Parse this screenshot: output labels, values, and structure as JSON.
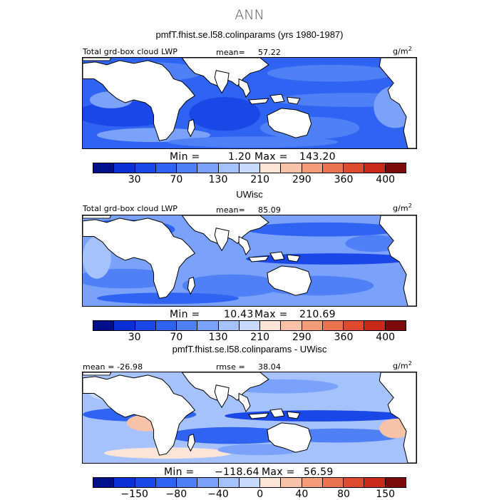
{
  "main_title": "ANN",
  "colors": {
    "palette_top": [
      "#00108a",
      "#0a2fd6",
      "#1a48e8",
      "#2f63f2",
      "#4f80f6",
      "#7aa2fb",
      "#a5c2fd",
      "#c8d9fe",
      "#fce4d6",
      "#f7c2a8",
      "#f29c7a",
      "#ea7350",
      "#dd4a2d",
      "#c9291a",
      "#7d0a0a"
    ],
    "palette_diff": [
      "#00108a",
      "#0a2fd6",
      "#1a48e8",
      "#2f63f2",
      "#4f80f6",
      "#7aa2fb",
      "#a5c2fd",
      "#c8d9fe",
      "#fce4d6",
      "#f7c2a8",
      "#f29c7a",
      "#ea7350",
      "#dd4a2d",
      "#c9291a",
      "#7d0a0a"
    ],
    "land": "#ffffff",
    "coast": "#000000"
  },
  "chart_data": [
    {
      "type": "heatmap",
      "title": "pmfT.fhist.se.l58.colinparams (yrs 1980-1987)",
      "left_label": "Total grd-box cloud LWP",
      "stat_label": "mean=",
      "stat_value": "57.22",
      "units_base": "g/m",
      "units_exp": "2",
      "min_label": "Min =",
      "min_value": "1.20",
      "max_label": "Max =",
      "max_value": "143.20",
      "colorbar_ticks": [
        "30",
        "70",
        "130",
        "210",
        "290",
        "360",
        "400"
      ]
    },
    {
      "type": "heatmap",
      "title": "UWisc",
      "left_label": "Total grd-box cloud LWP",
      "stat_label": "mean=",
      "stat_value": "85.09",
      "units_base": "g/m",
      "units_exp": "2",
      "min_label": "Min =",
      "min_value": "10.43",
      "max_label": "Max =",
      "max_value": "210.69",
      "colorbar_ticks": [
        "30",
        "70",
        "130",
        "210",
        "290",
        "360",
        "400"
      ]
    },
    {
      "type": "heatmap",
      "title": "pmfT.fhist.se.l58.colinparams - UWisc",
      "left_label": "mean = -26.98",
      "stat_label": "rmse =",
      "stat_value": "38.04",
      "units_base": "g/m",
      "units_exp": "2",
      "min_label": "Min =",
      "min_value": "−118.64",
      "max_label": "Max =",
      "max_value": "56.59",
      "colorbar_ticks": [
        "−150",
        "−80",
        "−40",
        "0",
        "40",
        "80",
        "150"
      ]
    }
  ]
}
